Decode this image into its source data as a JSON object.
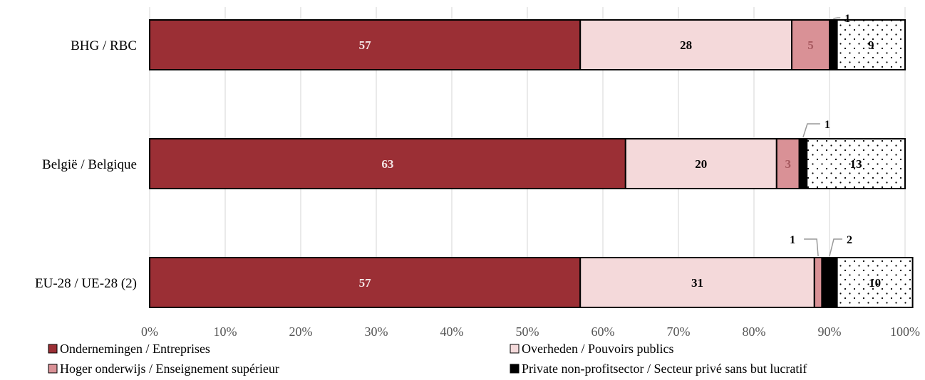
{
  "chart_data": {
    "type": "bar",
    "orientation": "horizontal",
    "stacked": true,
    "percent_scale": true,
    "categories": [
      "BHG / RBC",
      "België / Belgique",
      "EU-28 / UE-28 (2)"
    ],
    "series": [
      {
        "name": "Ondernemingen / Entreprises",
        "values": [
          57,
          63,
          57
        ],
        "labels": [
          "57",
          "63",
          "57"
        ],
        "color": "#9b2f35",
        "pattern": "solid"
      },
      {
        "name": "Overheden / Pouvoirs publics",
        "values": [
          28,
          20,
          31
        ],
        "labels": [
          "28",
          "20",
          "31"
        ],
        "color": "#f4d9da",
        "pattern": "solid"
      },
      {
        "name": "Hoger onderwijs / Enseignement supérieur",
        "values": [
          5,
          3,
          1
        ],
        "labels": [
          "5",
          "3",
          "1"
        ],
        "color": "#d99196",
        "pattern": "solid"
      },
      {
        "name": "Private non-profitsector / Secteur privé sans but lucratif",
        "values": [
          1,
          1,
          2
        ],
        "labels": [
          "1",
          "1",
          "2"
        ],
        "color": "#000000",
        "pattern": "solid"
      },
      {
        "name": "",
        "values": [
          9,
          13,
          10
        ],
        "labels": [
          "9",
          "13",
          "10"
        ],
        "color": "#ffffff",
        "pattern": "dots"
      }
    ],
    "x_ticks": [
      "0%",
      "10%",
      "20%",
      "30%",
      "40%",
      "50%",
      "60%",
      "70%",
      "80%",
      "90%",
      "100%"
    ],
    "xlim": [
      0,
      100
    ],
    "grid": true,
    "legend_position": "bottom"
  }
}
